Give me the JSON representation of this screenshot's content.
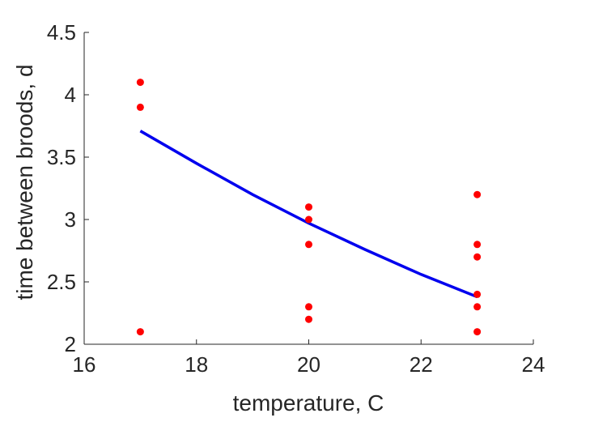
{
  "chart_data": {
    "type": "scatter",
    "title": "",
    "xlabel": "temperature, C",
    "ylabel": "time between broods, d",
    "xlim": [
      16,
      24
    ],
    "ylim": [
      2,
      4.5
    ],
    "xticks": [
      "16",
      "18",
      "20",
      "22",
      "24"
    ],
    "yticks": [
      "2",
      "2.5",
      "3",
      "3.5",
      "4",
      "4.5"
    ],
    "grid": false,
    "legend": "none",
    "series": [
      {
        "kind": "scatter",
        "color": "#ff0000",
        "points": [
          {
            "x": 17,
            "y": 4.1
          },
          {
            "x": 17,
            "y": 3.9
          },
          {
            "x": 17,
            "y": 2.1
          },
          {
            "x": 20,
            "y": 3.1
          },
          {
            "x": 20,
            "y": 3.0
          },
          {
            "x": 20,
            "y": 2.8
          },
          {
            "x": 20,
            "y": 2.3
          },
          {
            "x": 20,
            "y": 2.2
          },
          {
            "x": 23,
            "y": 3.2
          },
          {
            "x": 23,
            "y": 2.8
          },
          {
            "x": 23,
            "y": 2.7
          },
          {
            "x": 23,
            "y": 2.4
          },
          {
            "x": 23,
            "y": 2.3
          },
          {
            "x": 23,
            "y": 2.1
          }
        ]
      },
      {
        "kind": "line",
        "color": "#0000ee",
        "points": [
          {
            "x": 17,
            "y": 3.71
          },
          {
            "x": 18,
            "y": 3.45
          },
          {
            "x": 19,
            "y": 3.2
          },
          {
            "x": 20,
            "y": 2.97
          },
          {
            "x": 21,
            "y": 2.76
          },
          {
            "x": 22,
            "y": 2.56
          },
          {
            "x": 23,
            "y": 2.38
          }
        ]
      }
    ]
  }
}
